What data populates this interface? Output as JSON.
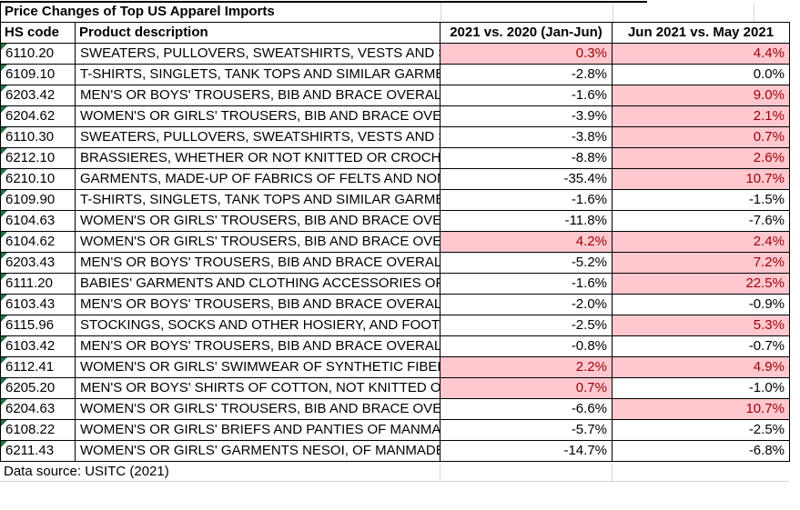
{
  "title": "Price Changes of Top US Apparel Imports",
  "columns": [
    "HS code",
    "Product description",
    "2021 vs. 2020 (Jan-Jun)",
    "Jun 2021 vs. May 2021"
  ],
  "footer": "Data source: USITC (2021)",
  "colors": {
    "positive_bg": "#FFC7CE",
    "positive_text": "#9C0006",
    "negative_text": "#000000",
    "border": "#000000",
    "gridline": "#D6D6D6",
    "flag_green": "#1E7145"
  },
  "rows": [
    {
      "hs": "6110.20",
      "desc": "SWEATERS, PULLOVERS, SWEATSHIRTS, VESTS AND SIMILAR ARTICLES, KNITTED OR CROCHETED",
      "yoy": "0.3%",
      "mom": "4.4%"
    },
    {
      "hs": "6109.10",
      "desc": "T-SHIRTS, SINGLETS, TANK TOPS AND SIMILAR GARMENTS, KNITTED OR CROCHETED, OF COTTON",
      "yoy": "-2.8%",
      "mom": "0.0%"
    },
    {
      "hs": "6203.42",
      "desc": "MEN'S OR BOYS' TROUSERS, BIB AND BRACE OVERALLS, BREECHES AND SHORTS",
      "yoy": "-1.6%",
      "mom": "9.0%"
    },
    {
      "hs": "6204.62",
      "desc": "WOMEN'S OR GIRLS' TROUSERS, BIB AND BRACE OVERALLS, BREECHES AND SHORTS",
      "yoy": "-3.9%",
      "mom": "2.1%"
    },
    {
      "hs": "6110.30",
      "desc": "SWEATERS, PULLOVERS, SWEATSHIRTS, VESTS AND SIMILAR ARTICLES, KNITTED OR CROCHETED",
      "yoy": "-3.8%",
      "mom": "0.7%"
    },
    {
      "hs": "6212.10",
      "desc": "BRASSIERES, WHETHER OR NOT KNITTED OR CROCHETED",
      "yoy": "-8.8%",
      "mom": "2.6%"
    },
    {
      "hs": "6210.10",
      "desc": "GARMENTS, MADE-UP OF FABRICS OF FELTS AND NONWOVENS",
      "yoy": "-35.4%",
      "mom": "10.7%"
    },
    {
      "hs": "6109.90",
      "desc": "T-SHIRTS, SINGLETS, TANK TOPS AND SIMILAR GARMENTS, KNITTED OR CROCHETED",
      "yoy": "-1.6%",
      "mom": "-1.5%"
    },
    {
      "hs": "6104.63",
      "desc": "WOMEN'S OR GIRLS' TROUSERS, BIB AND BRACE OVERALLS, BREECHES AND SHORTS",
      "yoy": "-11.8%",
      "mom": "-7.6%"
    },
    {
      "hs": "6104.62",
      "desc": "WOMEN'S OR GIRLS' TROUSERS, BIB AND BRACE OVERALLS, BREECHES AND SHORTS",
      "yoy": "4.2%",
      "mom": "2.4%"
    },
    {
      "hs": "6203.43",
      "desc": "MEN'S OR BOYS' TROUSERS, BIB AND BRACE OVERALLS, BREECHES AND SHORTS",
      "yoy": "-5.2%",
      "mom": "7.2%"
    },
    {
      "hs": "6111.20",
      "desc": "BABIES' GARMENTS AND CLOTHING ACCESSORIES OF COTTON, KNITTED OR CROCHETED",
      "yoy": "-1.6%",
      "mom": "22.5%"
    },
    {
      "hs": "6103.43",
      "desc": "MEN'S OR BOYS' TROUSERS, BIB AND BRACE OVERALLS, BREECHES AND SHORTS",
      "yoy": "-2.0%",
      "mom": "-0.9%"
    },
    {
      "hs": "6115.96",
      "desc": "STOCKINGS, SOCKS AND OTHER HOSIERY, AND FOOTWEAR WITHOUT APPLIED SOLES",
      "yoy": "-2.5%",
      "mom": "5.3%"
    },
    {
      "hs": "6103.42",
      "desc": "MEN'S OR BOYS' TROUSERS, BIB AND BRACE OVERALLS, BREECHES AND SHORTS",
      "yoy": "-0.8%",
      "mom": "-0.7%"
    },
    {
      "hs": "6112.41",
      "desc": "WOMEN'S OR GIRLS' SWIMWEAR OF SYNTHETIC FIBERS",
      "yoy": "2.2%",
      "mom": "4.9%"
    },
    {
      "hs": "6205.20",
      "desc": "MEN'S OR BOYS' SHIRTS OF COTTON, NOT KNITTED OR CROCHETED",
      "yoy": "0.7%",
      "mom": "-1.0%"
    },
    {
      "hs": "6204.63",
      "desc": "WOMEN'S OR GIRLS' TROUSERS, BIB AND BRACE OVERALLS, BREECHES AND SHORTS",
      "yoy": "-6.6%",
      "mom": "10.7%"
    },
    {
      "hs": "6108.22",
      "desc": "WOMEN'S OR GIRLS' BRIEFS AND PANTIES OF MANMADE FIBERS",
      "yoy": "-5.7%",
      "mom": "-2.5%"
    },
    {
      "hs": "6211.43",
      "desc": "WOMEN'S OR GIRLS' GARMENTS NESOI, OF MANMADE FIBERS",
      "yoy": "-14.7%",
      "mom": "-6.8%"
    }
  ]
}
